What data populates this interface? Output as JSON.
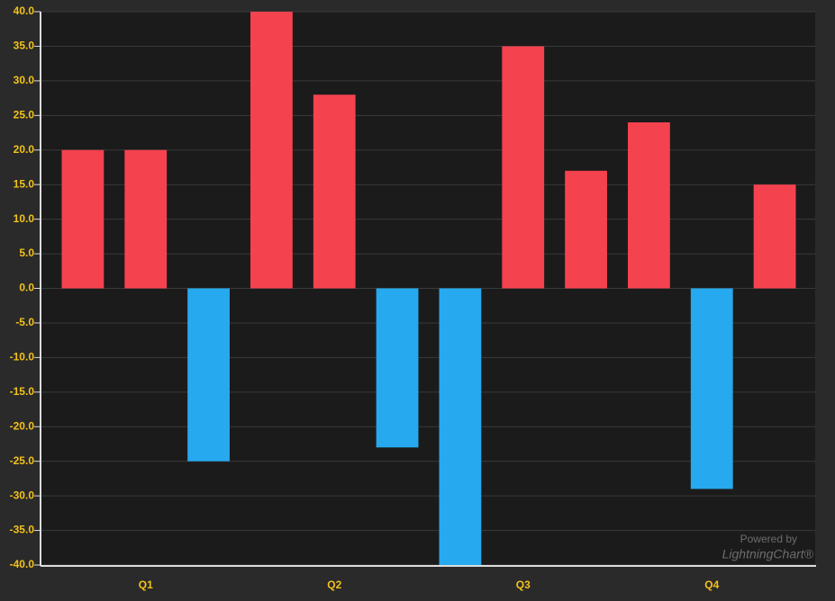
{
  "chart_data": {
    "type": "bar",
    "categories": [
      null,
      "Q1",
      null,
      null,
      "Q2",
      null,
      null,
      "Q3",
      null,
      null,
      "Q4",
      null
    ],
    "values": [
      20,
      20,
      -25,
      40,
      28,
      -23,
      -40,
      35,
      17,
      24,
      -29,
      15
    ],
    "positive_color": "#f5424f",
    "negative_color": "#27a9ef",
    "ylim": [
      -40,
      40
    ],
    "yticks": [
      {
        "value": 40,
        "label": "40.0"
      },
      {
        "value": 35,
        "label": "35.0"
      },
      {
        "value": 30,
        "label": "30.0"
      },
      {
        "value": 25,
        "label": "25.0"
      },
      {
        "value": 20,
        "label": "20.0"
      },
      {
        "value": 15,
        "label": "15.0"
      },
      {
        "value": 10,
        "label": "10.0"
      },
      {
        "value": 5,
        "label": "5.0"
      },
      {
        "value": 0,
        "label": "0.0"
      },
      {
        "value": -5,
        "label": "-5.0"
      },
      {
        "value": -10,
        "label": "-10.0"
      },
      {
        "value": -15,
        "label": "-15.0"
      },
      {
        "value": -20,
        "label": "-20.0"
      },
      {
        "value": -25,
        "label": "-25.0"
      },
      {
        "value": -30,
        "label": "-30.0"
      },
      {
        "value": -35,
        "label": "-35.0"
      },
      {
        "value": -40,
        "label": "-40.0"
      }
    ],
    "grid": true,
    "watermark": [
      "Powered by",
      "LightningChart®"
    ]
  }
}
